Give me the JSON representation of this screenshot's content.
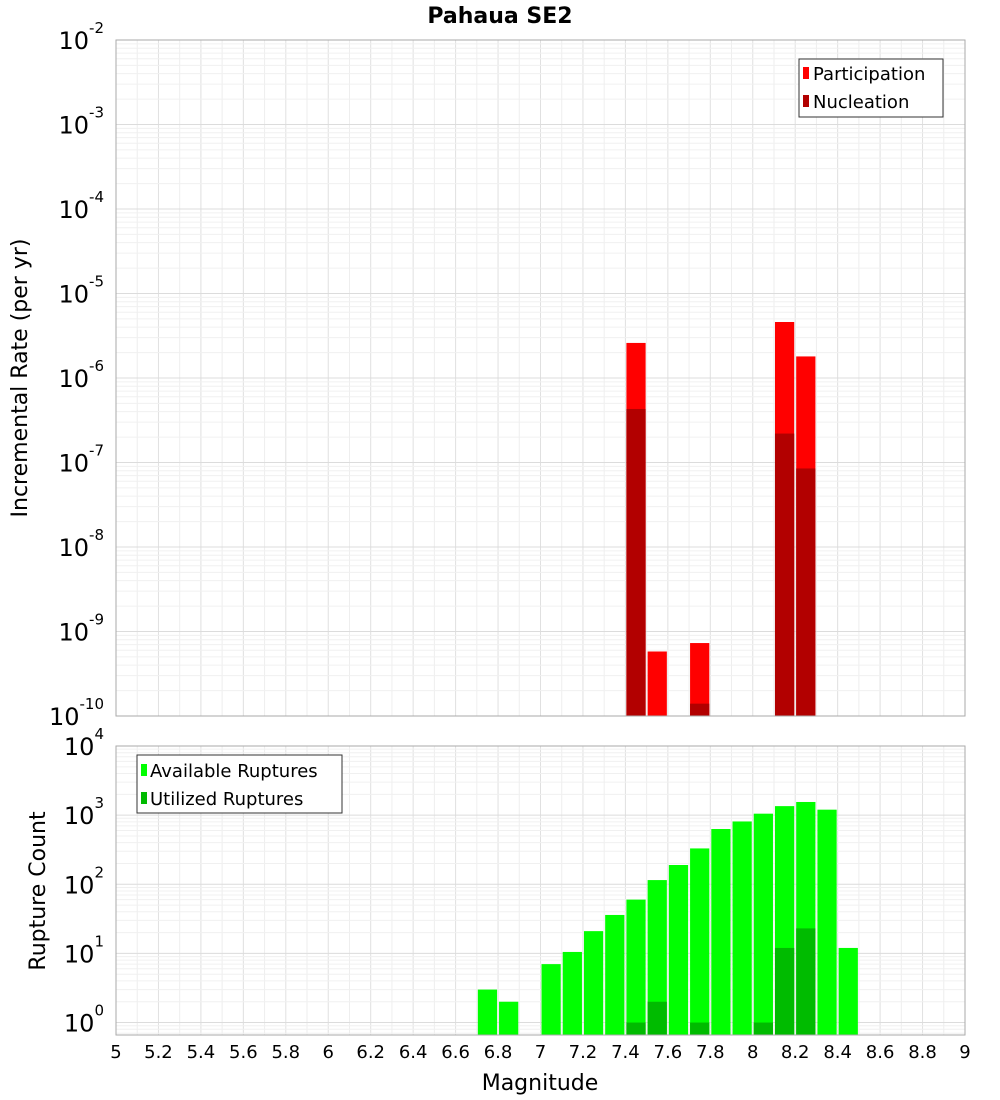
{
  "chart_data": [
    {
      "type": "bar",
      "title": "Pahaua SE2",
      "xlabel": "",
      "ylabel": "Incremental Rate (per yr)",
      "yscale": "log",
      "xlim": [
        5,
        9
      ],
      "ylim_exponents": [
        -10,
        -2
      ],
      "y_tick_base": "10",
      "y_tick_exponents": [
        "-10",
        "-9",
        "-8",
        "-7",
        "-6",
        "-5",
        "-4",
        "-3",
        "-2"
      ],
      "grid": true,
      "legend_position": "top-right",
      "bar_width": 0.1,
      "series": [
        {
          "name": "Participation",
          "color": "#ff0000",
          "x": [
            7.45,
            7.55,
            7.75,
            8.15,
            8.25
          ],
          "values": [
            2.6e-06,
            5.8e-10,
            7.3e-10,
            4.6e-06,
            1.8e-06
          ]
        },
        {
          "name": "Nucleation",
          "color": "#b20000",
          "x": [
            7.45,
            7.75,
            8.15,
            8.25
          ],
          "values": [
            4.3e-07,
            1.4e-10,
            2.2e-07,
            8.5e-08
          ]
        }
      ]
    },
    {
      "type": "bar",
      "title": "",
      "xlabel": "Magnitude",
      "ylabel": "Rupture Count",
      "yscale": "log",
      "xlim": [
        5,
        9
      ],
      "ylim_exponents": [
        -0.18,
        4
      ],
      "y_tick_base": "10",
      "y_tick_exponents": [
        "0",
        "1",
        "2",
        "3",
        "4"
      ],
      "x_ticks": [
        "5",
        "5.2",
        "5.4",
        "5.6",
        "5.8",
        "6",
        "6.2",
        "6.4",
        "6.6",
        "6.8",
        "7",
        "7.2",
        "7.4",
        "7.6",
        "7.8",
        "8",
        "8.2",
        "8.4",
        "8.6",
        "8.8",
        "9"
      ],
      "grid": true,
      "legend_position": "top-left",
      "bar_width": 0.1,
      "series": [
        {
          "name": "Available Ruptures",
          "color": "#00ff00",
          "x": [
            6.75,
            6.85,
            7.05,
            7.15,
            7.25,
            7.35,
            7.45,
            7.55,
            7.65,
            7.75,
            7.85,
            7.95,
            8.05,
            8.15,
            8.25,
            8.35,
            8.45
          ],
          "values": [
            3,
            2,
            7,
            10.5,
            21,
            36,
            60,
            115,
            190,
            330,
            630,
            810,
            1050,
            1350,
            1550,
            1200,
            12
          ]
        },
        {
          "name": "Utilized Ruptures",
          "color": "#00bb00",
          "x": [
            7.45,
            7.55,
            7.75,
            8.05,
            8.15,
            8.25
          ],
          "values": [
            1,
            2,
            1,
            1,
            12,
            23
          ]
        }
      ]
    }
  ]
}
